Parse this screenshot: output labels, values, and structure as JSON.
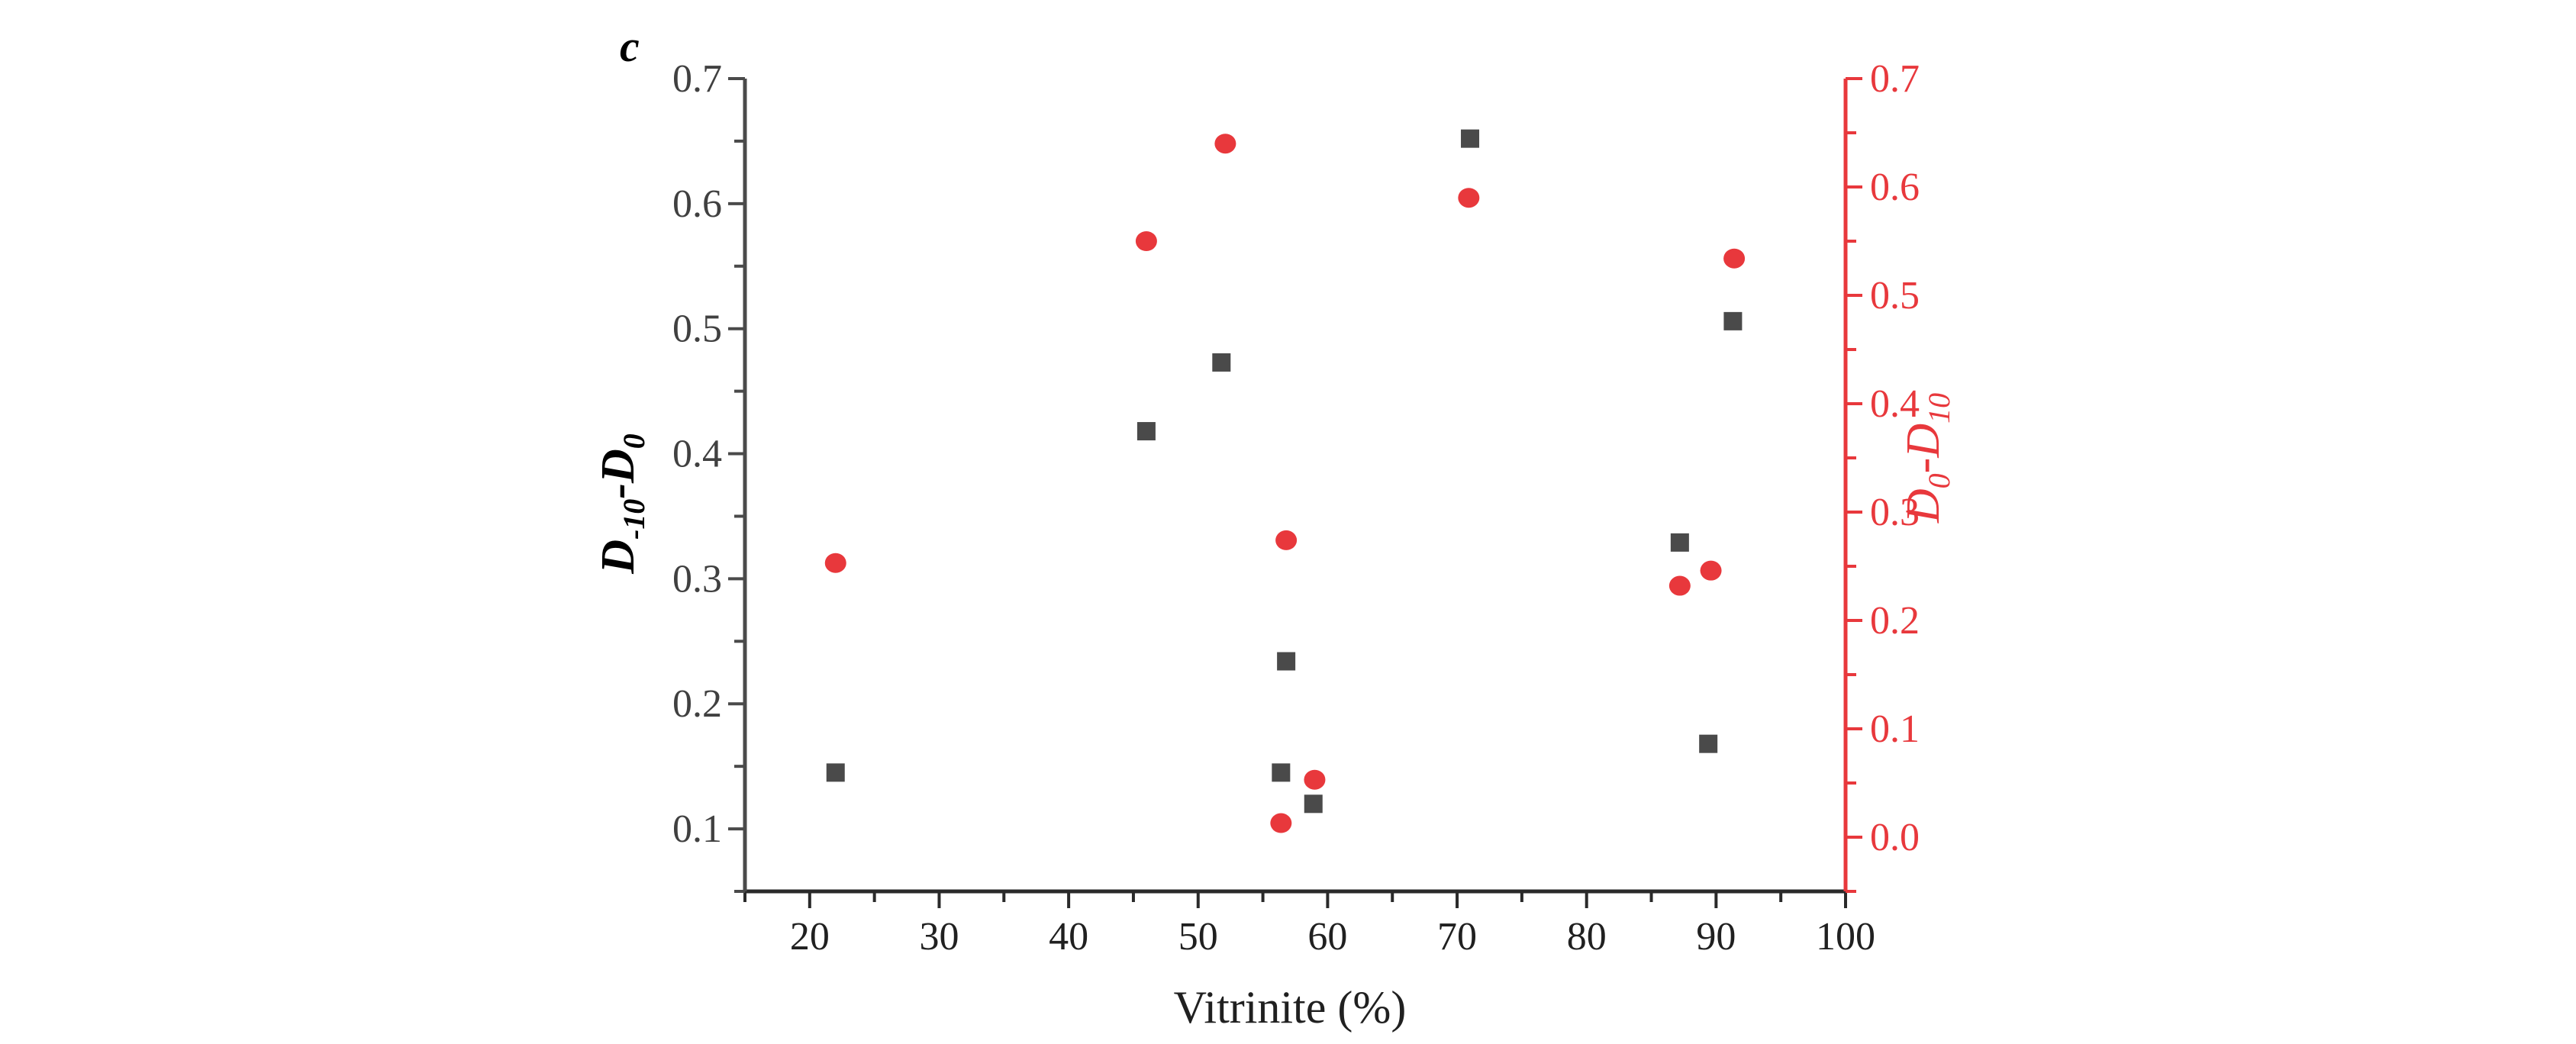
{
  "chart_data": {
    "type": "scatter",
    "panel_label": "c",
    "xlabel": "Vitrinite (%)",
    "xlim": [
      15,
      100
    ],
    "x_ticks": [
      20,
      30,
      40,
      50,
      60,
      70,
      80,
      90,
      100
    ],
    "x_tick_labels": [
      "20",
      "30",
      "40",
      "50",
      "60",
      "70",
      "80",
      "90",
      "100"
    ],
    "y_left": {
      "label_main": "D",
      "label_sub": "-10",
      "label_dash": "-",
      "label_main2": "D",
      "label_sub2": "0",
      "ylim": [
        0.05,
        0.7
      ],
      "ticks": [
        0.1,
        0.2,
        0.3,
        0.4,
        0.5,
        0.6,
        0.7
      ],
      "tick_labels": [
        "0.1",
        "0.2",
        "0.3",
        "0.4",
        "0.5",
        "0.6",
        "0.7"
      ],
      "color": "#4a4a4a"
    },
    "y_right": {
      "label_main": "D",
      "label_sub": "0",
      "label_dash": "-",
      "label_main2": "D",
      "label_sub2": "10",
      "ylim": [
        -0.05,
        0.7
      ],
      "ticks": [
        0.0,
        0.1,
        0.2,
        0.3,
        0.4,
        0.5,
        0.6,
        0.7
      ],
      "tick_labels": [
        "0.0",
        "0.1",
        "0.2",
        "0.3",
        "0.4",
        "0.5",
        "0.6",
        "0.7"
      ],
      "color": "#e8383c"
    },
    "series": [
      {
        "axis": "left",
        "marker": "square",
        "color": "#4a4a4a",
        "points": [
          {
            "x": 22.0,
            "y": 0.145
          },
          {
            "x": 46.0,
            "y": 0.418
          },
          {
            "x": 51.8,
            "y": 0.473
          },
          {
            "x": 56.4,
            "y": 0.145
          },
          {
            "x": 56.8,
            "y": 0.234
          },
          {
            "x": 58.9,
            "y": 0.12
          },
          {
            "x": 71.0,
            "y": 0.652
          },
          {
            "x": 87.2,
            "y": 0.329
          },
          {
            "x": 89.4,
            "y": 0.168
          },
          {
            "x": 91.3,
            "y": 0.506
          }
        ]
      },
      {
        "axis": "right",
        "marker": "circle",
        "color": "#e8383c",
        "points": [
          {
            "x": 22.0,
            "y": 0.253
          },
          {
            "x": 46.0,
            "y": 0.55
          },
          {
            "x": 52.1,
            "y": 0.64
          },
          {
            "x": 56.4,
            "y": 0.013
          },
          {
            "x": 56.8,
            "y": 0.274
          },
          {
            "x": 59.0,
            "y": 0.053
          },
          {
            "x": 70.9,
            "y": 0.59
          },
          {
            "x": 87.2,
            "y": 0.232
          },
          {
            "x": 89.6,
            "y": 0.246
          },
          {
            "x": 91.4,
            "y": 0.534
          }
        ]
      }
    ]
  }
}
